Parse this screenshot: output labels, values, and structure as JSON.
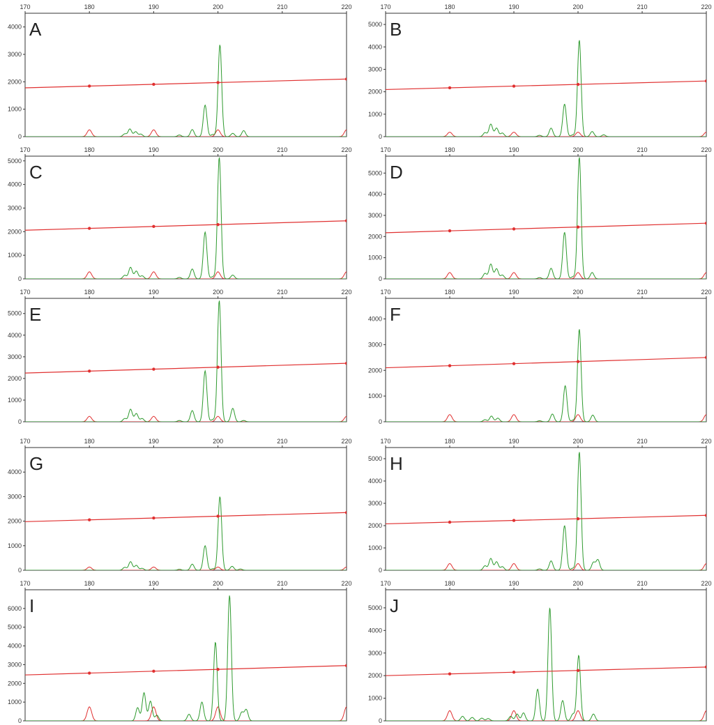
{
  "chart_data": {
    "type": "line",
    "layout": "5 rows x 2 columns grid of electropherogram panels",
    "x_ticks": [
      170,
      180,
      190,
      200,
      210,
      220
    ],
    "xlim": [
      170,
      220
    ],
    "grid": false,
    "colors": {
      "sample": "#2e9a2e",
      "size_standard": "#e03030",
      "frame": "#333333"
    },
    "size_standard_peaks": [
      180,
      190,
      200,
      220
    ],
    "panels": [
      {
        "letter": "A",
        "ylim": [
          0,
          4500
        ],
        "y_ticks": [
          0,
          1000,
          2000,
          3000,
          4000
        ],
        "red_line": [
          [
            170,
            1780
          ],
          [
            220,
            2100
          ]
        ],
        "red_peak_height": 250,
        "green_peaks": [
          [
            185.5,
            100
          ],
          [
            186.3,
            280
          ],
          [
            187.2,
            180
          ],
          [
            188.0,
            90
          ],
          [
            194.0,
            60
          ],
          [
            196.0,
            260
          ],
          [
            198.0,
            1150
          ],
          [
            199.2,
            80
          ],
          [
            200.3,
            3350
          ],
          [
            202.3,
            120
          ],
          [
            204.0,
            220
          ]
        ]
      },
      {
        "letter": "B",
        "ylim": [
          0,
          5500
        ],
        "y_ticks": [
          0,
          1000,
          2000,
          3000,
          4000,
          5000
        ],
        "red_line": [
          [
            170,
            2100
          ],
          [
            220,
            2480
          ]
        ],
        "red_peak_height": 200,
        "green_peaks": [
          [
            185.5,
            180
          ],
          [
            186.4,
            560
          ],
          [
            187.3,
            380
          ],
          [
            188.2,
            160
          ],
          [
            194.0,
            60
          ],
          [
            195.8,
            380
          ],
          [
            197.9,
            1450
          ],
          [
            199.2,
            80
          ],
          [
            200.2,
            4300
          ],
          [
            202.2,
            230
          ],
          [
            204.0,
            80
          ]
        ]
      },
      {
        "letter": "C",
        "ylim": [
          0,
          5200
        ],
        "y_ticks": [
          0,
          1000,
          2000,
          3000,
          4000,
          5000
        ],
        "red_line": [
          [
            170,
            2060
          ],
          [
            220,
            2460
          ]
        ],
        "red_peak_height": 300,
        "green_peaks": [
          [
            185.5,
            150
          ],
          [
            186.4,
            490
          ],
          [
            187.3,
            330
          ],
          [
            188.2,
            130
          ],
          [
            194.0,
            60
          ],
          [
            196.0,
            420
          ],
          [
            198.0,
            1980
          ],
          [
            199.2,
            90
          ],
          [
            200.2,
            5150
          ],
          [
            202.3,
            160
          ]
        ]
      },
      {
        "letter": "D",
        "ylim": [
          0,
          5800
        ],
        "y_ticks": [
          0,
          1000,
          2000,
          3000,
          4000,
          5000
        ],
        "red_line": [
          [
            170,
            2180
          ],
          [
            220,
            2630
          ]
        ],
        "red_peak_height": 300,
        "green_peaks": [
          [
            185.5,
            260
          ],
          [
            186.4,
            700
          ],
          [
            187.3,
            480
          ],
          [
            188.2,
            180
          ],
          [
            194.0,
            60
          ],
          [
            195.8,
            500
          ],
          [
            197.9,
            2200
          ],
          [
            199.2,
            100
          ],
          [
            200.2,
            5750
          ],
          [
            202.2,
            300
          ]
        ]
      },
      {
        "letter": "E",
        "ylim": [
          0,
          5700
        ],
        "y_ticks": [
          0,
          1000,
          2000,
          3000,
          4000,
          5000
        ],
        "red_line": [
          [
            170,
            2250
          ],
          [
            220,
            2700
          ]
        ],
        "red_peak_height": 250,
        "green_peaks": [
          [
            185.5,
            150
          ],
          [
            186.4,
            580
          ],
          [
            187.3,
            380
          ],
          [
            188.2,
            150
          ],
          [
            194.0,
            60
          ],
          [
            196.0,
            520
          ],
          [
            198.0,
            2350
          ],
          [
            199.2,
            100
          ],
          [
            200.2,
            5600
          ],
          [
            202.3,
            620
          ],
          [
            204.0,
            60
          ]
        ]
      },
      {
        "letter": "F",
        "ylim": [
          0,
          4800
        ],
        "y_ticks": [
          0,
          1000,
          2000,
          3000,
          4000
        ],
        "red_line": [
          [
            170,
            2100
          ],
          [
            220,
            2500
          ]
        ],
        "red_peak_height": 280,
        "green_peaks": [
          [
            185.5,
            80
          ],
          [
            186.5,
            220
          ],
          [
            187.5,
            140
          ],
          [
            194.0,
            40
          ],
          [
            196.0,
            300
          ],
          [
            198.0,
            1400
          ],
          [
            199.2,
            60
          ],
          [
            200.2,
            3600
          ],
          [
            202.3,
            260
          ]
        ]
      },
      {
        "letter": "G",
        "ylim": [
          0,
          5000
        ],
        "y_ticks": [
          0,
          1000,
          2000,
          3000,
          4000
        ],
        "red_line": [
          [
            170,
            1980
          ],
          [
            220,
            2350
          ]
        ],
        "red_peak_height": 130,
        "green_peaks": [
          [
            185.5,
            120
          ],
          [
            186.4,
            350
          ],
          [
            187.3,
            200
          ],
          [
            188.2,
            80
          ],
          [
            194.0,
            40
          ],
          [
            196.0,
            250
          ],
          [
            198.0,
            1000
          ],
          [
            199.2,
            60
          ],
          [
            200.3,
            3000
          ],
          [
            202.2,
            160
          ],
          [
            203.5,
            50
          ]
        ]
      },
      {
        "letter": "H",
        "ylim": [
          0,
          5500
        ],
        "y_ticks": [
          0,
          1000,
          2000,
          3000,
          4000,
          5000
        ],
        "red_line": [
          [
            170,
            2080
          ],
          [
            220,
            2460
          ]
        ],
        "red_peak_height": 300,
        "green_peaks": [
          [
            185.5,
            200
          ],
          [
            186.4,
            530
          ],
          [
            187.3,
            380
          ],
          [
            188.2,
            160
          ],
          [
            194.0,
            60
          ],
          [
            195.8,
            420
          ],
          [
            197.9,
            2000
          ],
          [
            199.2,
            90
          ],
          [
            200.2,
            5300
          ],
          [
            202.4,
            350
          ],
          [
            203.1,
            470
          ]
        ]
      },
      {
        "letter": "I",
        "ylim": [
          0,
          7000
        ],
        "y_ticks": [
          0,
          1000,
          2000,
          3000,
          4000,
          5000,
          6000
        ],
        "red_line": [
          [
            170,
            2450
          ],
          [
            220,
            2950
          ]
        ],
        "red_peak_height": 750,
        "green_peaks": [
          [
            187.5,
            700
          ],
          [
            188.5,
            1500
          ],
          [
            189.5,
            1050
          ],
          [
            190.5,
            300
          ],
          [
            195.5,
            350
          ],
          [
            197.5,
            1000
          ],
          [
            199.6,
            4200
          ],
          [
            201.8,
            6700
          ],
          [
            203.7,
            450
          ],
          [
            204.4,
            600
          ]
        ]
      },
      {
        "letter": "J",
        "ylim": [
          0,
          5800
        ],
        "y_ticks": [
          0,
          1000,
          2000,
          3000,
          4000,
          5000
        ],
        "red_line": [
          [
            170,
            2000
          ],
          [
            220,
            2380
          ]
        ],
        "red_peak_height": 450,
        "green_peaks": [
          [
            182.0,
            200
          ],
          [
            183.5,
            150
          ],
          [
            185.0,
            120
          ],
          [
            186.0,
            100
          ],
          [
            189.5,
            200
          ],
          [
            190.5,
            300
          ],
          [
            191.5,
            350
          ],
          [
            193.7,
            1400
          ],
          [
            195.6,
            5000
          ],
          [
            197.6,
            900
          ],
          [
            199.2,
            300
          ],
          [
            200.1,
            2900
          ],
          [
            202.4,
            300
          ]
        ]
      }
    ]
  }
}
